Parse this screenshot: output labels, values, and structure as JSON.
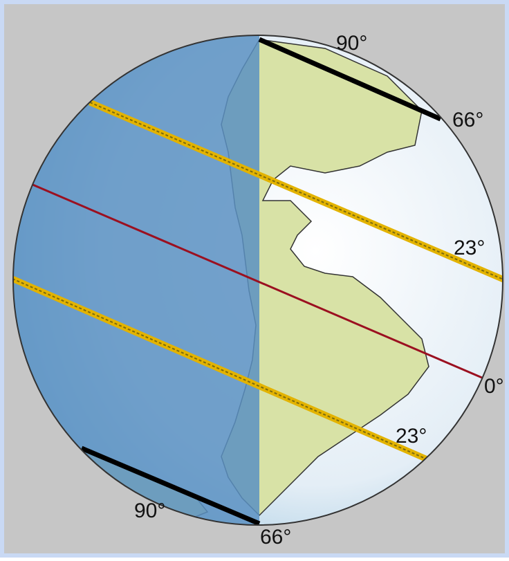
{
  "diagram": {
    "labels": [
      "90°",
      "66°",
      "23°",
      "0°",
      "23°",
      "90°",
      "66°"
    ]
  }
}
